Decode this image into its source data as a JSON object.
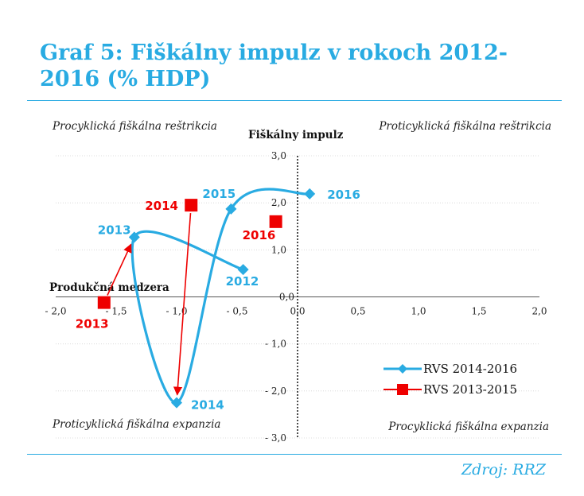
{
  "title": "Graf 5: Fiškálny impulz v rokoch 2012-2016 (% HDP)",
  "source": "Zdroj: RRZ",
  "colors": {
    "accent": "#29abe2",
    "red": "#ee0000"
  },
  "chart_data": {
    "type": "scatter",
    "xlabel": "Produkčná medzera",
    "ylabel": "Fiškálny impulz",
    "xlim": [
      -2.0,
      2.0
    ],
    "ylim": [
      -3.0,
      3.0
    ],
    "x_ticks": [
      "- 2,0",
      "- 1,5",
      "- 1,0",
      "- 0,5",
      "0,0",
      "0,5",
      "1,0",
      "1,5",
      "2,0"
    ],
    "y_ticks": [
      "- 3,0",
      "- 2,0",
      "- 1,0",
      "0,0",
      "1,0",
      "2,0",
      "3,0"
    ],
    "grid": true,
    "legend_position": "bottom-right",
    "quadrants": {
      "top_left": "Procyklická fiškálna reštrikcia",
      "top_right": "Proticyklická fiškálna reštrikcia",
      "bottom_left": "Proticyklická fiškálna expanzia",
      "bottom_right": "Procyklická fiškálna expanzia"
    },
    "series": [
      {
        "name": "RVS 2014-2016",
        "color": "#29abe2",
        "marker": "diamond",
        "style": "smooth-line",
        "points": [
          {
            "label": "2012",
            "x": -0.45,
            "y": 0.58
          },
          {
            "label": "2013",
            "x": -1.35,
            "y": 1.27
          },
          {
            "label": "2014",
            "x": -1.0,
            "y": -2.25
          },
          {
            "label": "2015",
            "x": -0.55,
            "y": 1.87
          },
          {
            "label": "2016",
            "x": 0.1,
            "y": 2.19
          }
        ]
      },
      {
        "name": "RVS 2013-2015",
        "color": "#ee0000",
        "marker": "square",
        "style": "arrows",
        "points": [
          {
            "label": "2013",
            "x": -1.6,
            "y": -0.12
          },
          {
            "label": "2014",
            "x": -0.88,
            "y": 1.95
          },
          {
            "label": "2016",
            "x": -0.18,
            "y": 1.6
          }
        ]
      }
    ]
  }
}
